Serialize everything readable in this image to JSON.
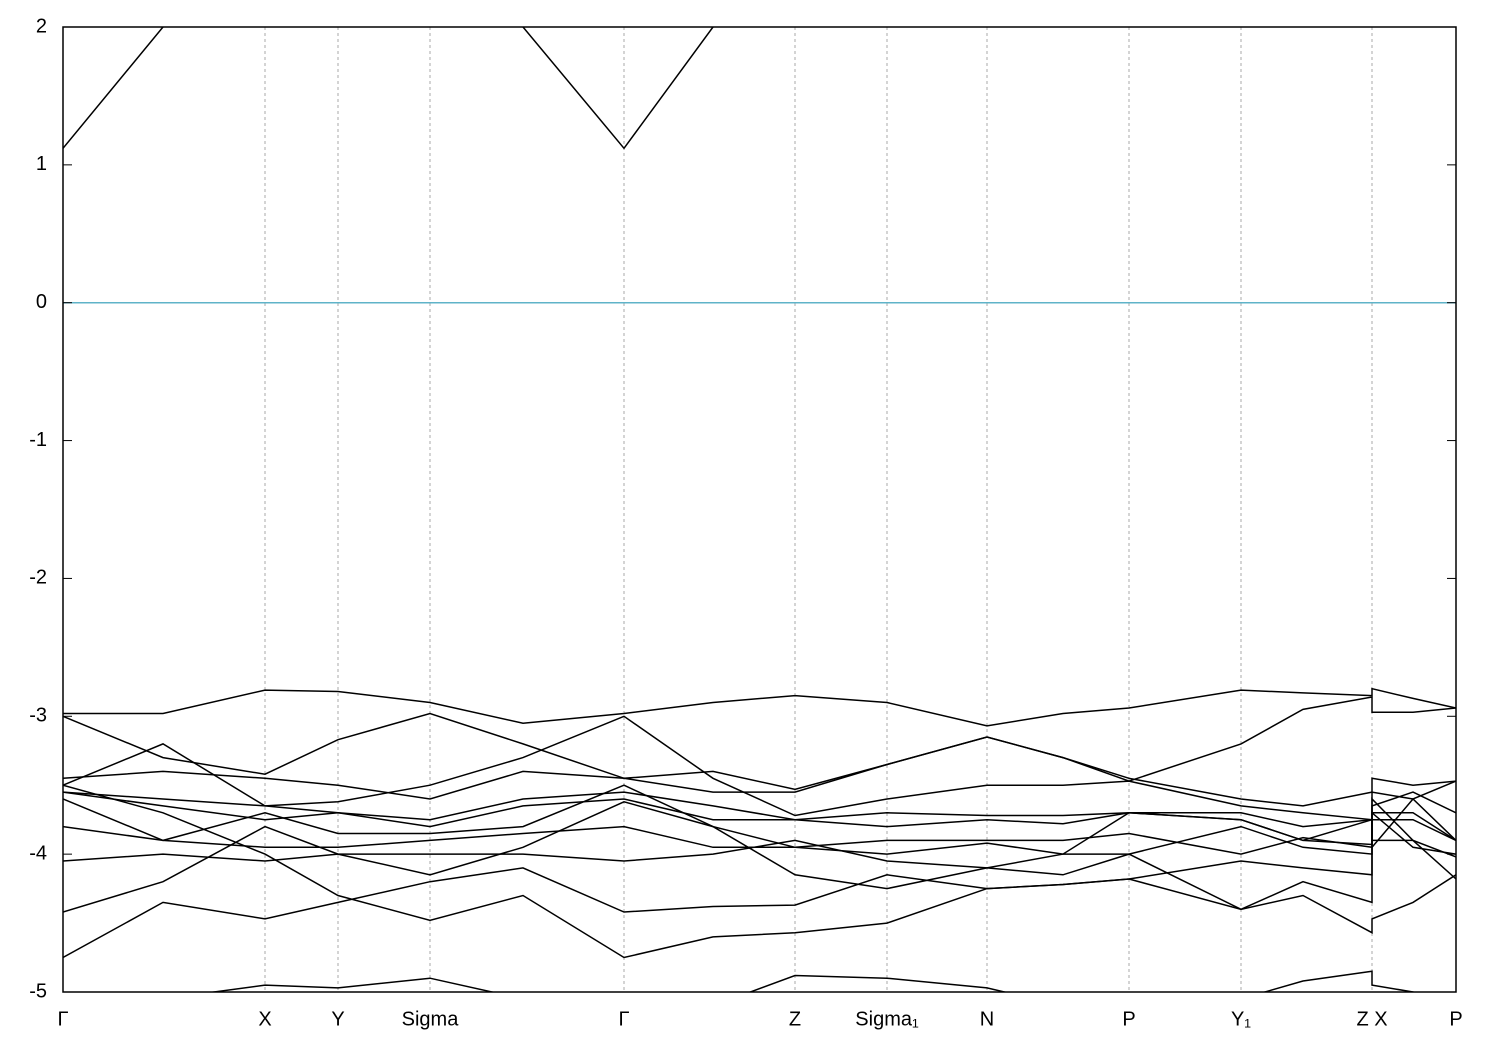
{
  "chart_data": {
    "type": "line",
    "x": [
      0,
      0.1,
      0.202,
      0.275,
      0.367,
      0.46,
      0.561,
      0.65,
      0.732,
      0.824,
      0.924,
      1.0,
      1.066,
      1.178,
      1.24,
      1.309,
      1.309,
      1.35,
      1.393
    ],
    "xlim": [
      0,
      1.393
    ],
    "xticks": [
      {
        "value": 0,
        "label": "Γ"
      },
      {
        "value": 0.202,
        "label": "X"
      },
      {
        "value": 0.275,
        "label": "Y"
      },
      {
        "value": 0.367,
        "label": "Sigma"
      },
      {
        "value": 0.561,
        "label": "Γ"
      },
      {
        "value": 0.732,
        "label": "Z"
      },
      {
        "value": 0.824,
        "label": "Sigma₁"
      },
      {
        "value": 0.924,
        "label": "N"
      },
      {
        "value": 1.066,
        "label": "P"
      },
      {
        "value": 1.178,
        "label": "Y₁"
      },
      {
        "value": 1.309,
        "label": "Z X"
      },
      {
        "value": 1.393,
        "label": "P"
      }
    ],
    "ylim": [
      -5,
      2
    ],
    "yticks": [
      2,
      1,
      0,
      -1,
      -2,
      -3,
      -4,
      -5
    ],
    "grid": true,
    "zero_line": {
      "value": 0,
      "color": "#5fb3c8"
    },
    "series": [
      {
        "color": "#000000",
        "values": [
          1.12,
          2.0,
          null,
          null,
          null,
          2.0,
          1.12,
          2.0,
          null,
          null,
          null,
          null,
          null,
          null,
          null,
          null,
          null,
          null,
          null
        ]
      },
      {
        "color": "#000000",
        "values": [
          -2.98,
          -2.98,
          -2.81,
          -2.82,
          -2.9,
          -3.05,
          -2.98,
          -2.9,
          -2.85,
          -2.9,
          -3.07,
          -2.98,
          -2.94,
          -2.81,
          -2.83,
          -2.85,
          -2.8,
          -2.87,
          -2.94
        ]
      },
      {
        "color": "#000000",
        "values": [
          -3.0,
          -3.3,
          -3.42,
          -3.17,
          -2.98,
          -3.2,
          -3.45,
          -3.4,
          -3.53,
          -3.35,
          -3.15,
          -3.3,
          -3.47,
          -3.2,
          -2.95,
          -2.86,
          -2.97,
          -2.97,
          -2.94
        ]
      },
      {
        "color": "#000000",
        "values": [
          -3.45,
          -3.4,
          -3.45,
          -3.5,
          -3.6,
          -3.4,
          -3.45,
          -3.55,
          -3.55,
          -3.35,
          -3.15,
          -3.3,
          -3.45,
          -3.6,
          -3.65,
          -3.55,
          -3.45,
          -3.5,
          -3.47
        ]
      },
      {
        "color": "#000000",
        "values": [
          -3.5,
          -3.2,
          -3.65,
          -3.62,
          -3.5,
          -3.3,
          -3.0,
          -3.45,
          -3.72,
          -3.6,
          -3.5,
          -3.5,
          -3.47,
          -3.65,
          -3.7,
          -3.75,
          -3.55,
          -3.6,
          -3.47
        ]
      },
      {
        "color": "#000000",
        "values": [
          -3.55,
          -3.6,
          -3.65,
          -3.7,
          -3.75,
          -3.6,
          -3.55,
          -3.65,
          -3.75,
          -3.7,
          -3.72,
          -3.72,
          -3.7,
          -3.7,
          -3.8,
          -3.75,
          -3.65,
          -3.55,
          -3.7
        ]
      },
      {
        "color": "#000000",
        "values": [
          -3.55,
          -3.65,
          -3.75,
          -3.7,
          -3.8,
          -3.65,
          -3.6,
          -3.75,
          -3.75,
          -3.8,
          -3.75,
          -3.78,
          -3.7,
          -3.75,
          -3.9,
          -3.93,
          -3.75,
          -3.75,
          -3.9
        ]
      },
      {
        "color": "#000000",
        "values": [
          -3.6,
          -3.9,
          -3.7,
          -3.85,
          -3.85,
          -3.8,
          -3.5,
          -3.8,
          -3.95,
          -3.9,
          -3.9,
          -3.9,
          -3.85,
          -4.0,
          -3.88,
          -3.95,
          -3.7,
          -3.7,
          -3.9
        ]
      },
      {
        "color": "#000000",
        "values": [
          -3.8,
          -3.9,
          -3.95,
          -3.95,
          -3.9,
          -3.85,
          -3.8,
          -3.95,
          -3.95,
          -4.0,
          -3.92,
          -4.0,
          -4.0,
          -3.8,
          -3.95,
          -4.0,
          -3.7,
          -3.95,
          -4.0
        ]
      },
      {
        "color": "#000000",
        "values": [
          -4.05,
          -4.0,
          -4.05,
          -4.0,
          -4.0,
          -4.0,
          -4.05,
          -4.0,
          -3.9,
          -4.05,
          -4.1,
          -4.0,
          -3.7,
          -3.75,
          -3.9,
          -3.75,
          -3.9,
          -3.9,
          -4.02
        ]
      },
      {
        "color": "#000000",
        "values": [
          -4.42,
          -4.2,
          -3.8,
          -4.0,
          -4.15,
          -3.95,
          -3.62,
          -3.8,
          -4.15,
          -4.25,
          -4.1,
          -4.15,
          -4.0,
          -4.4,
          -4.2,
          -4.35,
          -3.95,
          -3.6,
          -3.9
        ]
      },
      {
        "color": "#000000",
        "values": [
          -4.75,
          -4.35,
          -4.47,
          -4.35,
          -4.2,
          -4.1,
          -4.42,
          -4.38,
          -4.37,
          -4.15,
          -4.25,
          -4.22,
          -4.18,
          -4.05,
          -4.1,
          -4.15,
          -3.6,
          -3.9,
          -4.18
        ]
      },
      {
        "color": "#000000",
        "values": [
          -3.5,
          -3.7,
          -4.0,
          -4.3,
          -4.48,
          -4.3,
          -4.75,
          -4.6,
          -4.57,
          -4.5,
          -4.25,
          -4.22,
          -4.18,
          -4.4,
          -4.3,
          -4.57,
          -4.47,
          -4.35,
          -4.15
        ]
      },
      {
        "color": "#000000",
        "values": [
          -5.1,
          -5.05,
          -4.95,
          -4.97,
          -4.9,
          -5.05,
          -5.3,
          -5.1,
          -4.88,
          -4.9,
          -4.97,
          -5.1,
          -5.2,
          -5.05,
          -4.92,
          -4.85,
          -4.95,
          -5.0,
          -5.1
        ]
      }
    ]
  }
}
